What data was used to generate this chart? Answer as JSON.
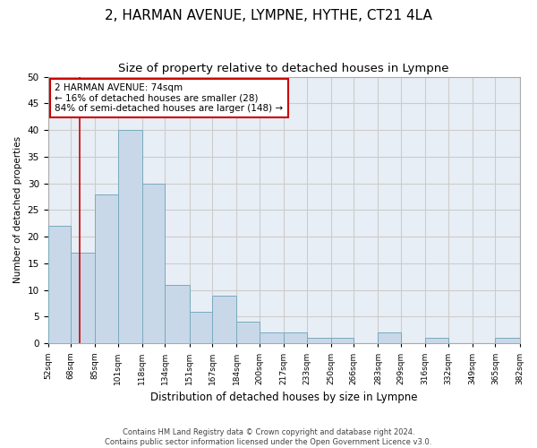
{
  "title": "2, HARMAN AVENUE, LYMPNE, HYTHE, CT21 4LA",
  "subtitle": "Size of property relative to detached houses in Lympne",
  "xlabel": "Distribution of detached houses by size in Lympne",
  "ylabel": "Number of detached properties",
  "bin_edges": [
    52,
    68,
    85,
    101,
    118,
    134,
    151,
    167,
    184,
    200,
    217,
    233,
    250,
    266,
    283,
    299,
    316,
    332,
    349,
    365,
    382
  ],
  "bar_heights": [
    22,
    17,
    28,
    40,
    30,
    11,
    6,
    9,
    4,
    2,
    2,
    1,
    1,
    0,
    2,
    0,
    1,
    0,
    0,
    1
  ],
  "bar_color": "#c8d8e8",
  "bar_edge_color": "#7aaabf",
  "red_line_x": 74,
  "ylim": [
    0,
    50
  ],
  "xlim": [
    52,
    382
  ],
  "annotation_title": "2 HARMAN AVENUE: 74sqm",
  "annotation_line1": "← 16% of detached houses are smaller (28)",
  "annotation_line2": "84% of semi-detached houses are larger (148) →",
  "annotation_box_color": "#ffffff",
  "annotation_box_edge_color": "#cc0000",
  "footer_line1": "Contains HM Land Registry data © Crown copyright and database right 2024.",
  "footer_line2": "Contains public sector information licensed under the Open Government Licence v3.0.",
  "background_color": "#ffffff",
  "grid_color": "#cccccc",
  "title_fontsize": 11,
  "subtitle_fontsize": 9.5,
  "tick_labels": [
    "52sqm",
    "68sqm",
    "85sqm",
    "101sqm",
    "118sqm",
    "134sqm",
    "151sqm",
    "167sqm",
    "184sqm",
    "200sqm",
    "217sqm",
    "233sqm",
    "250sqm",
    "266sqm",
    "283sqm",
    "299sqm",
    "316sqm",
    "332sqm",
    "349sqm",
    "365sqm",
    "382sqm"
  ]
}
